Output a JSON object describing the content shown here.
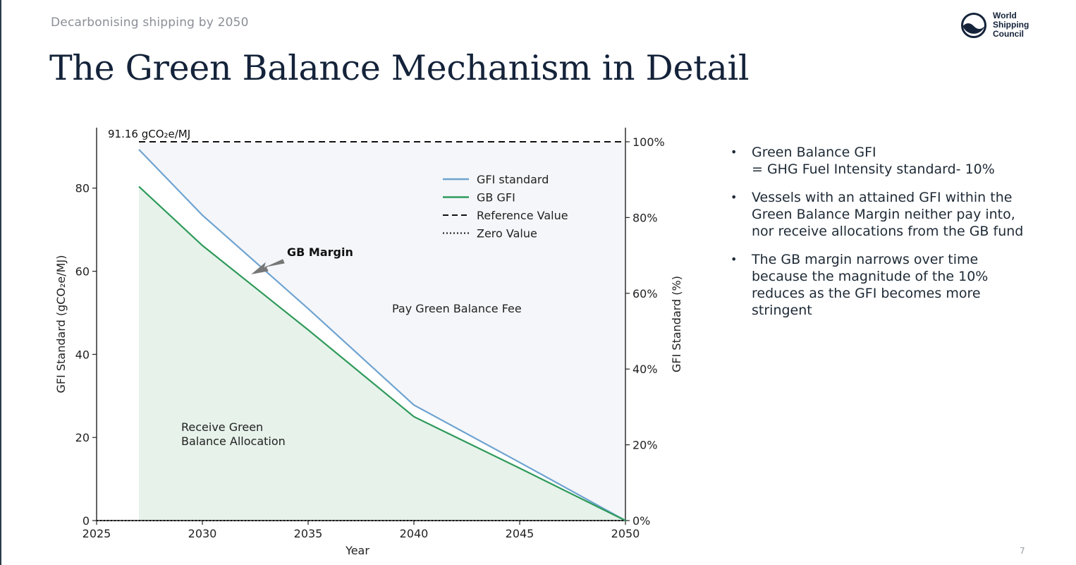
{
  "slide": {
    "kicker": "Decarbonising shipping by 2050",
    "title": "The Green Balance Mechanism in Detail",
    "page_number": "7"
  },
  "logo": {
    "lines": [
      "World",
      "Shipping",
      "Council"
    ]
  },
  "bullets": [
    "Green Balance GFI\n= GHG Fuel Intensity standard- 10%",
    "Vessels with an attained GFI within the\nGreen Balance Margin neither pay into,\nnor receive allocations from the GB fund",
    "The GB margin narrows over time\nbecause the magnitude of the 10%\nreduces as the GFI becomes more\nstringent"
  ],
  "chart_data": {
    "type": "line",
    "xlabel": "Year",
    "ylabel": "GFI Standard (gCO₂e/MJ)",
    "y2label": "GFI Standard (%)",
    "xlim": [
      2025,
      2050
    ],
    "ylim": [
      0,
      91.16
    ],
    "y2lim": [
      0,
      100
    ],
    "x_ticks": [
      2025,
      2030,
      2035,
      2040,
      2045,
      2050
    ],
    "y_ticks": [
      0,
      20,
      40,
      60,
      80
    ],
    "y2_ticks": [
      "0%",
      "20%",
      "40%",
      "60%",
      "80%",
      "100%"
    ],
    "y2_tick_values": [
      0,
      20,
      40,
      60,
      80,
      100
    ],
    "series": [
      {
        "name": "GFI standard",
        "color": "#6fa3d0",
        "style": "solid",
        "x": [
          2027,
          2030,
          2035,
          2040,
          2045,
          2050
        ],
        "y": [
          89.3,
          73.5,
          51.0,
          27.8,
          14.0,
          0
        ]
      },
      {
        "name": "GB GFI",
        "color": "#2e9a5a",
        "style": "solid",
        "x": [
          2027,
          2030,
          2035,
          2040,
          2045,
          2050
        ],
        "y": [
          80.4,
          66.2,
          45.9,
          25.0,
          12.6,
          0
        ]
      },
      {
        "name": "Reference Value",
        "color": "#111111",
        "style": "dashed",
        "x": [
          2027,
          2050
        ],
        "y": [
          91.16,
          91.16
        ]
      },
      {
        "name": "Zero Value",
        "color": "#111111",
        "style": "dotted",
        "x": [
          2025,
          2050
        ],
        "y": [
          0,
          0
        ]
      }
    ],
    "annotations": {
      "reference_label": "91.16 gCO₂e/MJ",
      "gb_margin": "GB Margin",
      "pay_region": "Pay Green Balance Fee",
      "receive_region_line1": "Receive Green",
      "receive_region_line2": "Balance Allocation"
    },
    "colors": {
      "pay_fill": "#f4f6f9",
      "receive_fill": "#e6f2ea",
      "arrow": "#777777"
    },
    "legend_position": "top-right",
    "grid": false
  }
}
